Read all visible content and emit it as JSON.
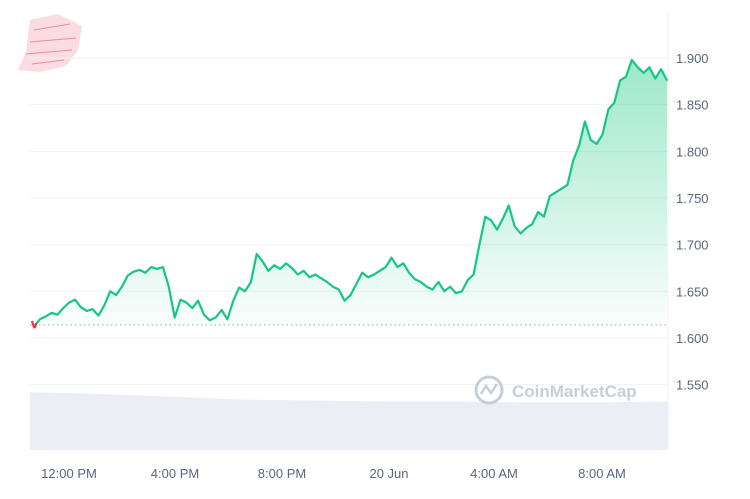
{
  "chart_data": {
    "type": "area",
    "title": "",
    "xlabel": "",
    "ylabel": "",
    "ylim": [
      1.5,
      1.92
    ],
    "x_ticks": [
      "12:00 PM",
      "4:00 PM",
      "8:00 PM",
      "20 Jun",
      "4:00 AM",
      "8:00 AM"
    ],
    "y_ticks": [
      "1.900",
      "1.850",
      "1.800",
      "1.750",
      "1.700",
      "1.650",
      "1.600",
      "1.550"
    ],
    "reference_value": 1.614,
    "watermark": "CoinMarketCap",
    "grid": true,
    "series": [
      {
        "values": [
          1.612,
          1.62,
          1.623,
          1.627,
          1.625,
          1.632,
          1.638,
          1.641,
          1.633,
          1.629,
          1.631,
          1.624,
          1.635,
          1.65,
          1.646,
          1.655,
          1.667,
          1.671,
          1.673,
          1.67,
          1.676,
          1.674,
          1.676,
          1.655,
          1.622,
          1.641,
          1.638,
          1.632,
          1.64,
          1.625,
          1.619,
          1.622,
          1.63,
          1.62,
          1.64,
          1.654,
          1.65,
          1.66,
          1.69,
          1.682,
          1.672,
          1.678,
          1.674,
          1.68,
          1.675,
          1.668,
          1.672,
          1.665,
          1.668,
          1.664,
          1.66,
          1.655,
          1.652,
          1.64,
          1.646,
          1.658,
          1.67,
          1.665,
          1.668,
          1.672,
          1.676,
          1.686,
          1.676,
          1.68,
          1.67,
          1.663,
          1.66,
          1.655,
          1.652,
          1.66,
          1.65,
          1.655,
          1.648,
          1.65,
          1.662,
          1.668,
          1.7,
          1.73,
          1.726,
          1.716,
          1.728,
          1.742,
          1.72,
          1.712,
          1.718,
          1.722,
          1.735,
          1.73,
          1.752,
          1.756,
          1.76,
          1.764,
          1.79,
          1.806,
          1.832,
          1.812,
          1.808,
          1.818,
          1.845,
          1.852,
          1.876,
          1.88,
          1.898,
          1.89,
          1.884,
          1.89,
          1.878,
          1.888,
          1.876
        ]
      }
    ],
    "volume_band": [
      1.542,
      1.54,
      1.537,
      1.534,
      1.533,
      1.532,
      1.532,
      1.531,
      1.531,
      1.532
    ]
  },
  "colors": {
    "line": "#16c784",
    "start_marker": "#ea3943",
    "grid": "#eff2f5",
    "dotted": "#a6b0c3",
    "volume": "#ebeef4"
  }
}
